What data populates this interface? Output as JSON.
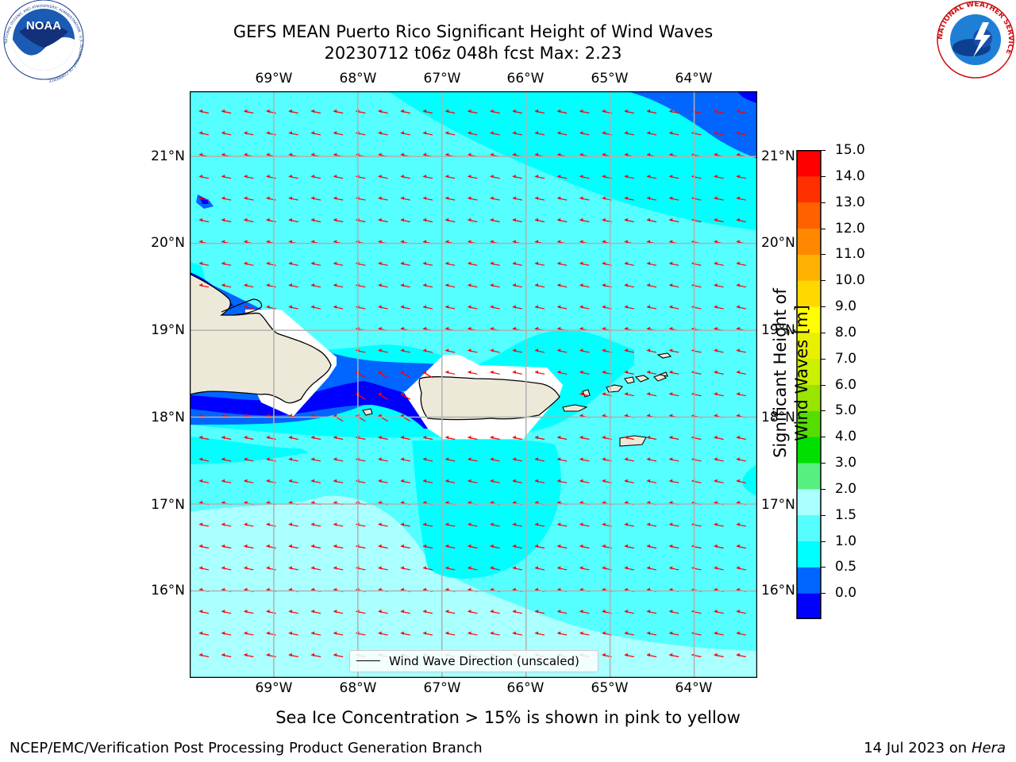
{
  "title": {
    "line1": "GEFS MEAN Puerto Rico Significant Height of Wind Waves",
    "line2": "20230712 t06z 048h fcst   Max: 2.23"
  },
  "logos": {
    "noaa_text": "NOAA",
    "noaa_ring": "NATIONAL OCEANIC AND ATMOSPHERIC ADMINISTRATION · U.S. DEPARTMENT OF COMMERCE",
    "nws_ring": "NATIONAL WEATHER SERVICE"
  },
  "map": {
    "lon_labels": [
      "69°W",
      "68°W",
      "67°W",
      "66°W",
      "65°W",
      "64°W"
    ],
    "lat_labels": [
      "21°N",
      "20°N",
      "19°N",
      "18°N",
      "17°N",
      "16°N"
    ],
    "lon_values": [
      -69,
      -68,
      -67,
      -66,
      -65,
      -64
    ],
    "lat_values": [
      21,
      20,
      19,
      18,
      17,
      16
    ],
    "extent": {
      "lon_min": -70.0,
      "lon_max": -63.25,
      "lat_min": 15.0,
      "lat_max": 21.75
    },
    "arrow_color": "#ff0000",
    "coast_color": "#000000",
    "land_color": "#ede9d8",
    "grid_color": "#b0b0b0",
    "vector_direction": "westward (from east)"
  },
  "legend": {
    "label": "Wind Wave Direction (unscaled)"
  },
  "colorbar": {
    "label": "Significant Height of Wind Waves [m]",
    "ticks": [
      "15.0",
      "14.0",
      "13.0",
      "12.0",
      "11.0",
      "10.0",
      "9.0",
      "8.0",
      "7.0",
      "6.0",
      "5.0",
      "4.0",
      "3.0",
      "2.0",
      "1.5",
      "1.0",
      "0.5",
      "0.0"
    ],
    "colors_bottom_to_top": [
      "#0000ff",
      "#0066ff",
      "#00ffff",
      "#55ffff",
      "#aaffff",
      "#55f080",
      "#00e000",
      "#55dd00",
      "#99e500",
      "#ccf000",
      "#e8f000",
      "#ffff00",
      "#ffd800",
      "#ffb000",
      "#ff8800",
      "#ff6000",
      "#ff3000",
      "#ff0000"
    ]
  },
  "note": "Sea Ice Concentration > 15% is shown in pink to yellow",
  "footer": {
    "left": "NCEP/EMC/Verification Post Processing Product Generation Branch",
    "right_date": "14 Jul 2023 on ",
    "right_machine": "Hera"
  }
}
